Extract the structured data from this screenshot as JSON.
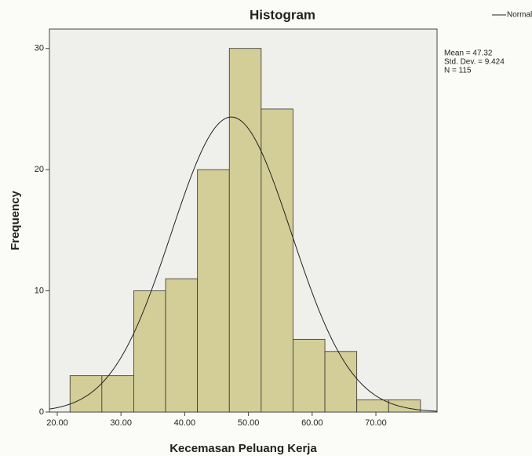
{
  "chart_data": {
    "type": "histogram",
    "title": "Histogram",
    "x_label": "Kecemasan Peluang Kerja",
    "y_label": "Frequency",
    "bins": [
      22,
      27,
      32,
      37,
      42,
      47,
      52,
      57,
      62,
      67,
      72,
      77
    ],
    "values": [
      3,
      3,
      10,
      11,
      20,
      30,
      25,
      6,
      5,
      1,
      1
    ],
    "color": "#d3ce97",
    "xlim": [
      18.77,
      79.6
    ],
    "ylim": [
      0,
      31.6
    ],
    "xticks": [
      {
        "value": 20,
        "label": "20.00"
      },
      {
        "value": 30,
        "label": "30.00"
      },
      {
        "value": 40,
        "label": "40.00"
      },
      {
        "value": 50,
        "label": "50.00"
      },
      {
        "value": 60,
        "label": "60.00"
      },
      {
        "value": 70,
        "label": "70.00"
      }
    ],
    "yticks": [
      0,
      10,
      20,
      30
    ],
    "normal": {
      "name": "Normal",
      "mean": 47.32,
      "std": 9.424,
      "n": 115,
      "labels": [
        "Mean = 47.32",
        "Std. Dev. = 9.424",
        "N = 115"
      ]
    }
  }
}
